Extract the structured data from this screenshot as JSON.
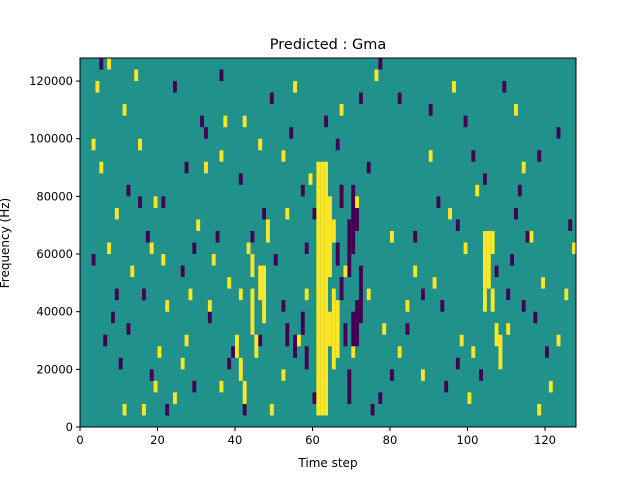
{
  "chart_data": {
    "type": "heatmap",
    "title": "Predicted : Gma",
    "xlabel": "Time step",
    "ylabel": "Frequency (Hz)",
    "xlim": [
      0,
      128
    ],
    "ylim": [
      0,
      128000
    ],
    "x_ticks": [
      0,
      20,
      40,
      60,
      80,
      100,
      120
    ],
    "x_tick_labels": [
      "0",
      "20",
      "40",
      "60",
      "80",
      "100",
      "120"
    ],
    "y_ticks": [
      0,
      20000,
      40000,
      60000,
      80000,
      100000,
      120000
    ],
    "y_tick_labels": [
      "0",
      "20000",
      "40000",
      "60000",
      "80000",
      "100000",
      "120000"
    ],
    "grid": false,
    "legend": "none",
    "cell_size": {
      "time_steps": 1,
      "frequency_hz": 4000
    },
    "value_levels": {
      "low": -1,
      "mid": 0,
      "high": 1
    },
    "colors": {
      "low": "#440154",
      "mid": "#21918c",
      "high": "#fde725"
    },
    "background_level": "mid",
    "high_cells": [
      [
        61,
        4000,
        8000
      ],
      [
        61,
        8000,
        92000
      ],
      [
        62,
        4000,
        8000
      ],
      [
        62,
        8000,
        92000
      ],
      [
        63,
        4000,
        8000
      ],
      [
        63,
        8000,
        92000
      ],
      [
        64,
        28000,
        40000
      ],
      [
        64,
        52000,
        80000
      ],
      [
        65,
        20000,
        48000
      ],
      [
        65,
        64000,
        72000
      ],
      [
        66,
        24000,
        44000
      ],
      [
        46,
        44000,
        56000
      ],
      [
        47,
        36000,
        56000
      ],
      [
        45,
        24000,
        32000
      ],
      [
        44,
        32000,
        48000
      ],
      [
        41,
        16000,
        24000
      ],
      [
        42,
        8000,
        16000
      ],
      [
        40,
        24000,
        32000
      ],
      [
        43,
        60000,
        64000
      ],
      [
        44,
        52000,
        60000
      ],
      [
        104,
        48000,
        68000
      ],
      [
        105,
        48000,
        68000
      ],
      [
        106,
        60000,
        68000
      ],
      [
        104,
        40000,
        48000
      ],
      [
        106,
        40000,
        48000
      ],
      [
        108,
        20000,
        32000
      ],
      [
        107,
        28000,
        36000
      ],
      [
        41,
        44000,
        48000
      ],
      [
        48,
        64000,
        72000
      ],
      [
        4,
        116000,
        120000
      ],
      [
        7,
        124000,
        128000
      ],
      [
        14,
        120000,
        124000
      ],
      [
        11,
        108000,
        112000
      ],
      [
        3,
        96000,
        100000
      ],
      [
        5,
        88000,
        92000
      ],
      [
        19,
        76000,
        80000
      ],
      [
        18,
        60000,
        64000
      ],
      [
        21,
        56000,
        60000
      ],
      [
        20,
        24000,
        28000
      ],
      [
        19,
        12000,
        16000
      ],
      [
        16,
        4000,
        8000
      ],
      [
        11,
        4000,
        8000
      ],
      [
        27,
        28000,
        32000
      ],
      [
        33,
        40000,
        44000
      ],
      [
        38,
        48000,
        52000
      ],
      [
        32,
        88000,
        92000
      ],
      [
        36,
        92000,
        96000
      ],
      [
        42,
        104000,
        108000
      ],
      [
        46,
        96000,
        100000
      ],
      [
        52,
        92000,
        96000
      ],
      [
        55,
        116000,
        120000
      ],
      [
        59,
        84000,
        88000
      ],
      [
        67,
        108000,
        112000
      ],
      [
        71,
        76000,
        80000
      ],
      [
        74,
        44000,
        48000
      ],
      [
        78,
        32000,
        36000
      ],
      [
        82,
        24000,
        28000
      ],
      [
        88,
        16000,
        20000
      ],
      [
        86,
        52000,
        56000
      ],
      [
        90,
        92000,
        96000
      ],
      [
        95,
        72000,
        76000
      ],
      [
        99,
        60000,
        64000
      ],
      [
        101,
        24000,
        28000
      ],
      [
        102,
        80000,
        84000
      ],
      [
        112,
        108000,
        112000
      ],
      [
        114,
        88000,
        92000
      ],
      [
        116,
        64000,
        68000
      ],
      [
        119,
        48000,
        52000
      ],
      [
        121,
        12000,
        16000
      ],
      [
        123,
        28000,
        32000
      ],
      [
        118,
        4000,
        8000
      ],
      [
        110,
        32000,
        36000
      ],
      [
        7,
        60000,
        64000
      ],
      [
        9,
        72000,
        76000
      ],
      [
        13,
        52000,
        56000
      ],
      [
        22,
        40000,
        44000
      ],
      [
        26,
        20000,
        24000
      ],
      [
        30,
        68000,
        72000
      ],
      [
        36,
        12000,
        16000
      ],
      [
        52,
        16000,
        20000
      ],
      [
        56,
        28000,
        32000
      ],
      [
        58,
        44000,
        48000
      ],
      [
        76,
        120000,
        124000
      ],
      [
        96,
        116000,
        120000
      ],
      [
        100,
        8000,
        12000
      ],
      [
        127,
        60000,
        64000
      ],
      [
        125,
        44000,
        48000
      ],
      [
        84,
        40000,
        44000
      ],
      [
        80,
        64000,
        68000
      ],
      [
        91,
        48000,
        52000
      ],
      [
        98,
        28000,
        32000
      ],
      [
        70,
        24000,
        28000
      ],
      [
        68,
        52000,
        56000
      ],
      [
        49,
        4000,
        8000
      ],
      [
        24,
        8000,
        12000
      ],
      [
        28,
        44000,
        48000
      ],
      [
        34,
        56000,
        60000
      ],
      [
        15,
        96000,
        100000
      ],
      [
        37,
        104000,
        108000
      ],
      [
        53,
        72000,
        76000
      ]
    ],
    "low_cells": [
      [
        69,
        8000,
        20000
      ],
      [
        70,
        24000,
        40000
      ],
      [
        71,
        28000,
        44000
      ],
      [
        72,
        36000,
        56000
      ],
      [
        69,
        52000,
        72000
      ],
      [
        70,
        60000,
        84000
      ],
      [
        71,
        68000,
        76000
      ],
      [
        67,
        44000,
        52000
      ],
      [
        67,
        76000,
        84000
      ],
      [
        68,
        28000,
        36000
      ],
      [
        63,
        12000,
        16000
      ],
      [
        60,
        8000,
        12000
      ],
      [
        66,
        56000,
        64000
      ],
      [
        57,
        32000,
        40000
      ],
      [
        58,
        20000,
        28000
      ],
      [
        55,
        24000,
        32000
      ],
      [
        52,
        40000,
        44000
      ],
      [
        53,
        28000,
        36000
      ],
      [
        60,
        72000,
        76000
      ],
      [
        58,
        60000,
        64000
      ],
      [
        42,
        4000,
        8000
      ],
      [
        38,
        20000,
        24000
      ],
      [
        35,
        64000,
        68000
      ],
      [
        29,
        60000,
        64000
      ],
      [
        26,
        52000,
        56000
      ],
      [
        17,
        64000,
        68000
      ],
      [
        15,
        76000,
        80000
      ],
      [
        16,
        44000,
        48000
      ],
      [
        12,
        32000,
        36000
      ],
      [
        10,
        20000,
        24000
      ],
      [
        6,
        28000,
        32000
      ],
      [
        8,
        36000,
        40000
      ],
      [
        5,
        124000,
        128000
      ],
      [
        24,
        116000,
        120000
      ],
      [
        31,
        104000,
        108000
      ],
      [
        36,
        120000,
        124000
      ],
      [
        41,
        84000,
        88000
      ],
      [
        49,
        112000,
        116000
      ],
      [
        54,
        100000,
        104000
      ],
      [
        63,
        104000,
        108000
      ],
      [
        66,
        96000,
        100000
      ],
      [
        72,
        112000,
        116000
      ],
      [
        77,
        124000,
        128000
      ],
      [
        82,
        112000,
        116000
      ],
      [
        90,
        108000,
        112000
      ],
      [
        99,
        104000,
        108000
      ],
      [
        109,
        116000,
        120000
      ],
      [
        113,
        80000,
        84000
      ],
      [
        115,
        64000,
        68000
      ],
      [
        111,
        56000,
        60000
      ],
      [
        107,
        52000,
        56000
      ],
      [
        110,
        44000,
        48000
      ],
      [
        114,
        40000,
        44000
      ],
      [
        117,
        36000,
        40000
      ],
      [
        120,
        24000,
        28000
      ],
      [
        103,
        16000,
        20000
      ],
      [
        97,
        20000,
        24000
      ],
      [
        94,
        12000,
        16000
      ],
      [
        93,
        40000,
        44000
      ],
      [
        88,
        44000,
        48000
      ],
      [
        84,
        32000,
        36000
      ],
      [
        80,
        16000,
        20000
      ],
      [
        77,
        8000,
        12000
      ],
      [
        75,
        4000,
        8000
      ],
      [
        86,
        64000,
        68000
      ],
      [
        92,
        76000,
        80000
      ],
      [
        97,
        68000,
        72000
      ],
      [
        101,
        92000,
        96000
      ],
      [
        112,
        72000,
        76000
      ],
      [
        126,
        68000,
        72000
      ],
      [
        123,
        100000,
        104000
      ],
      [
        118,
        92000,
        96000
      ],
      [
        104,
        84000,
        88000
      ],
      [
        74,
        88000,
        92000
      ],
      [
        47,
        72000,
        76000
      ],
      [
        57,
        80000,
        84000
      ],
      [
        32,
        100000,
        104000
      ],
      [
        27,
        88000,
        92000
      ],
      [
        21,
        76000,
        80000
      ],
      [
        44,
        64000,
        68000
      ],
      [
        50,
        56000,
        60000
      ],
      [
        46,
        28000,
        32000
      ],
      [
        39,
        24000,
        28000
      ],
      [
        33,
        36000,
        40000
      ],
      [
        29,
        12000,
        16000
      ],
      [
        22,
        4000,
        8000
      ],
      [
        18,
        16000,
        20000
      ],
      [
        9,
        44000,
        48000
      ],
      [
        3,
        56000,
        60000
      ],
      [
        12,
        80000,
        84000
      ]
    ]
  }
}
